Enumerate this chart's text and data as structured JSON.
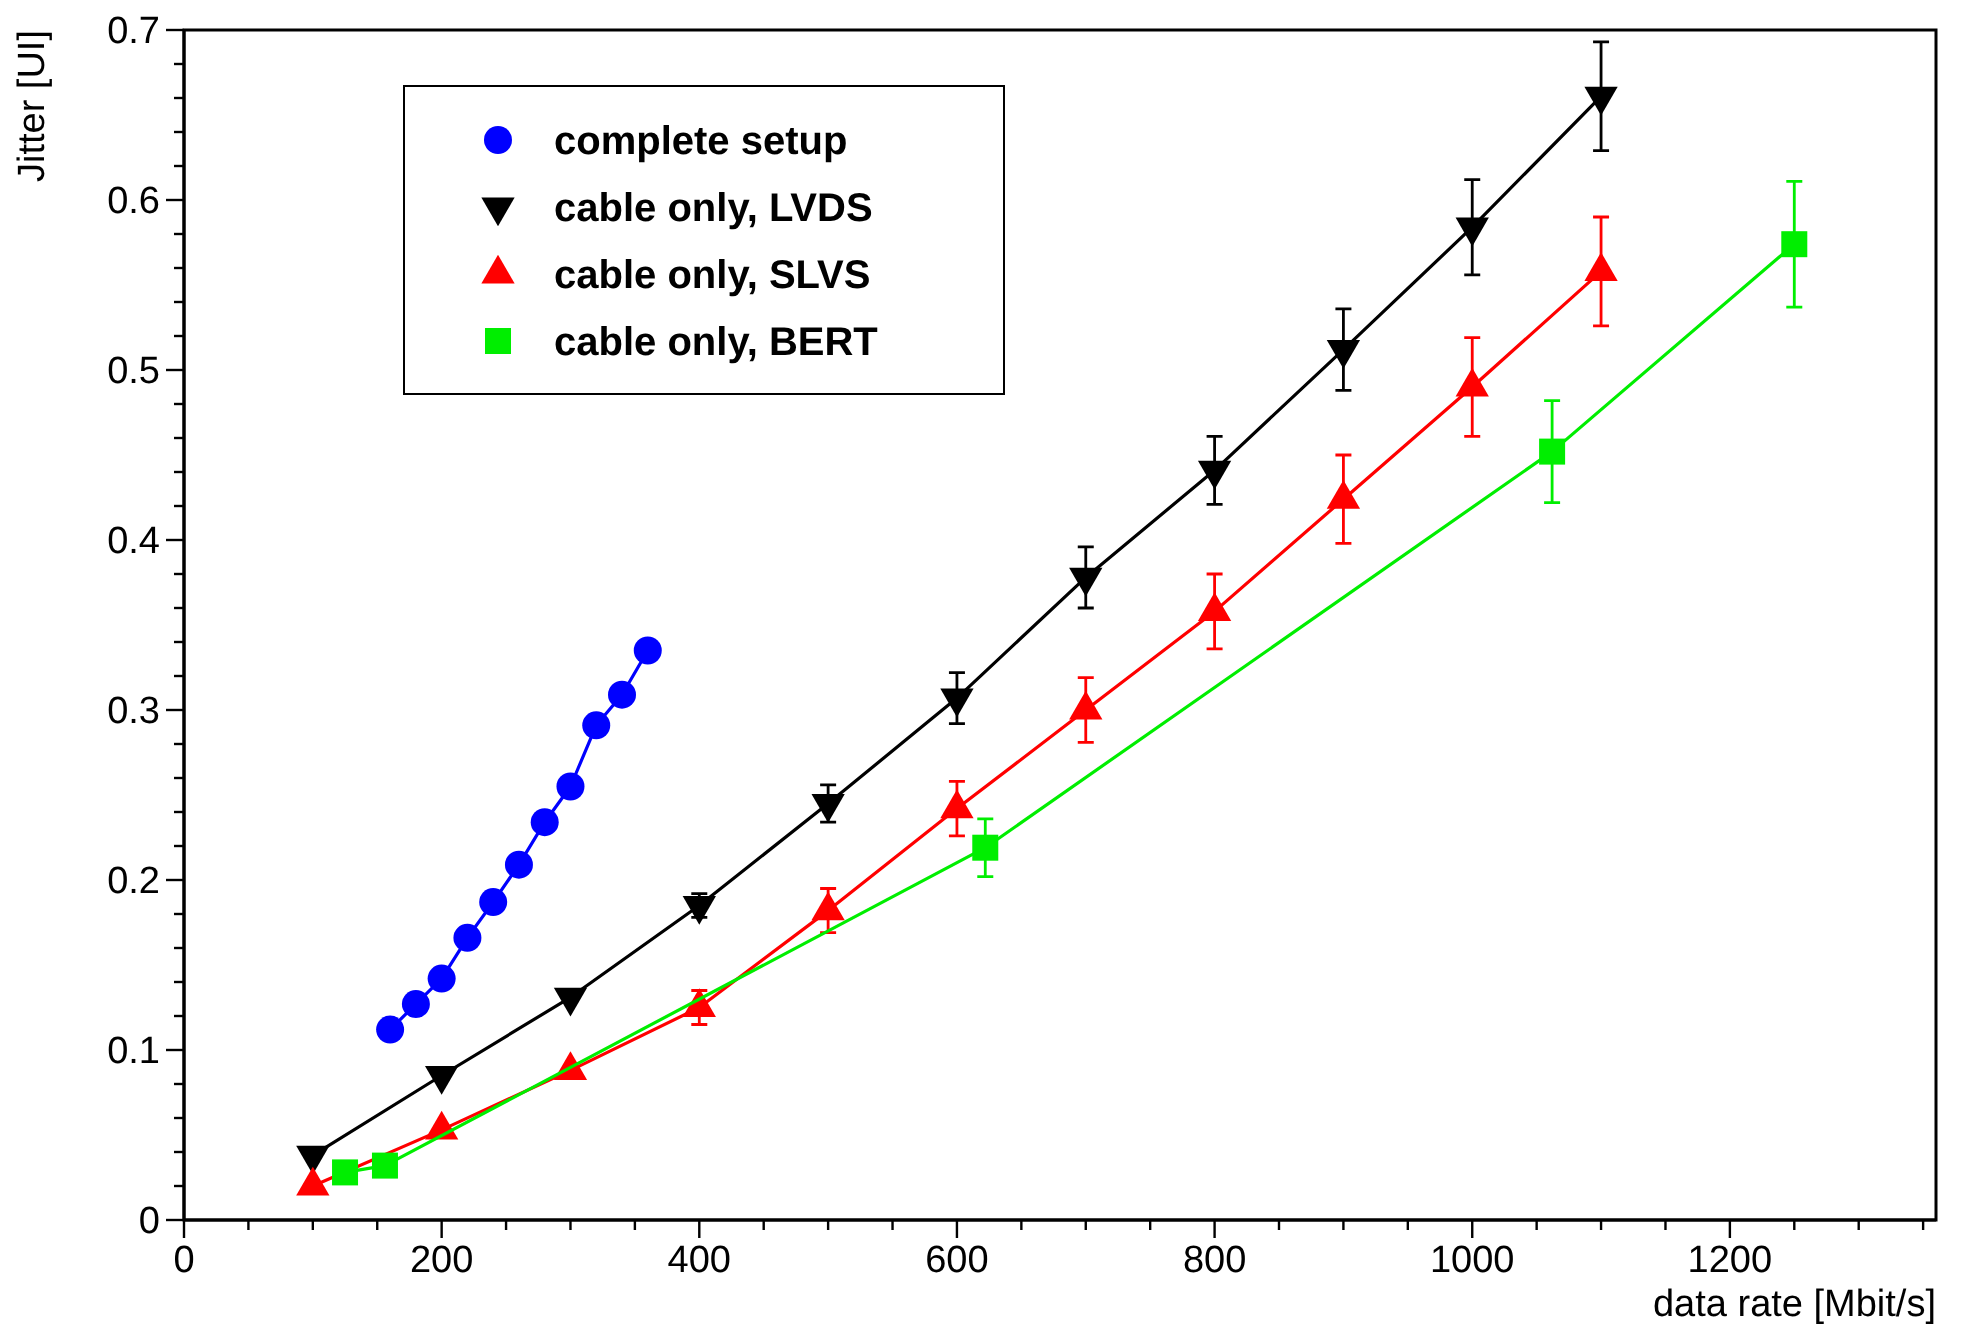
{
  "chart_data": {
    "type": "line",
    "xlabel": "data rate [Mbit/s]",
    "ylabel": "Jitter [UI]",
    "xlim": [
      0,
      1360
    ],
    "ylim": [
      0,
      0.7
    ],
    "xticks": [
      0,
      {
        "value": 50,
        "label": null
      },
      {
        "value": 100,
        "label": null
      },
      {
        "value": 150,
        "label": null
      },
      200,
      {
        "value": 250,
        "label": null
      },
      {
        "value": 300,
        "label": null
      },
      {
        "value": 350,
        "label": null
      },
      400,
      {
        "value": 450,
        "label": null
      },
      {
        "value": 500,
        "label": null
      },
      {
        "value": 550,
        "label": null
      },
      600,
      {
        "value": 650,
        "label": null
      },
      {
        "value": 700,
        "label": null
      },
      {
        "value": 750,
        "label": null
      },
      800,
      {
        "value": 850,
        "label": null
      },
      {
        "value": 900,
        "label": null
      },
      {
        "value": 950,
        "label": null
      },
      1000,
      {
        "value": 1050,
        "label": null
      },
      {
        "value": 1100,
        "label": null
      },
      {
        "value": 1150,
        "label": null
      },
      1200,
      {
        "value": 1250,
        "label": null
      },
      {
        "value": 1300,
        "label": null
      },
      {
        "value": 1350,
        "label": null
      }
    ],
    "yticks": [
      0,
      {
        "value": 0.02,
        "label": null
      },
      {
        "value": 0.04,
        "label": null
      },
      {
        "value": 0.06,
        "label": null
      },
      {
        "value": 0.08,
        "label": null
      },
      0.1,
      {
        "value": 0.12,
        "label": null
      },
      {
        "value": 0.14,
        "label": null
      },
      {
        "value": 0.16,
        "label": null
      },
      {
        "value": 0.18,
        "label": null
      },
      0.2,
      {
        "value": 0.22,
        "label": null
      },
      {
        "value": 0.24,
        "label": null
      },
      {
        "value": 0.26,
        "label": null
      },
      {
        "value": 0.28,
        "label": null
      },
      0.3,
      {
        "value": 0.32,
        "label": null
      },
      {
        "value": 0.34,
        "label": null
      },
      {
        "value": 0.36,
        "label": null
      },
      {
        "value": 0.38,
        "label": null
      },
      0.4,
      {
        "value": 0.42,
        "label": null
      },
      {
        "value": 0.44,
        "label": null
      },
      {
        "value": 0.46,
        "label": null
      },
      {
        "value": 0.48,
        "label": null
      },
      0.5,
      {
        "value": 0.52,
        "label": null
      },
      {
        "value": 0.54,
        "label": null
      },
      {
        "value": 0.56,
        "label": null
      },
      {
        "value": 0.58,
        "label": null
      },
      0.6,
      {
        "value": 0.62,
        "label": null
      },
      {
        "value": 0.64,
        "label": null
      },
      {
        "value": 0.66,
        "label": null
      },
      {
        "value": 0.68,
        "label": null
      },
      0.7
    ],
    "grid": false,
    "legend": "top left",
    "line_style": "solid",
    "series": [
      {
        "name": "complete setup",
        "color": "#0000ff",
        "marker": "circle",
        "x": [
          160,
          180,
          200,
          220,
          240,
          260,
          280,
          300,
          320,
          340,
          360
        ],
        "values": [
          0.112,
          0.127,
          0.142,
          0.166,
          0.187,
          0.209,
          0.234,
          0.255,
          0.291,
          0.309,
          0.335
        ]
      },
      {
        "name": "cable only, LVDS",
        "color": "#000000",
        "marker": "triangle-down",
        "x": [
          100,
          200,
          300,
          400,
          500,
          600,
          700,
          800,
          900,
          1000,
          1100
        ],
        "values": [
          0.038,
          0.085,
          0.131,
          0.185,
          0.245,
          0.307,
          0.378,
          0.441,
          0.512,
          0.584,
          0.661
        ],
        "errors": [
          null,
          null,
          null,
          0.007,
          0.011,
          0.015,
          0.018,
          0.02,
          0.024,
          0.028,
          0.032
        ]
      },
      {
        "name": "cable only, SLVS",
        "color": "#ff0000",
        "marker": "triangle",
        "x": [
          100,
          200,
          300,
          400,
          500,
          600,
          700,
          800,
          900,
          1000,
          1100
        ],
        "values": [
          0.02,
          0.053,
          0.088,
          0.125,
          0.182,
          0.242,
          0.3,
          0.358,
          0.424,
          0.49,
          0.558
        ],
        "errors": [
          null,
          null,
          null,
          0.01,
          0.013,
          0.016,
          0.019,
          0.022,
          0.026,
          0.029,
          0.032
        ]
      },
      {
        "name": "cable only, BERT",
        "color": "#00ee00",
        "marker": "square",
        "x": [
          125,
          156,
          622,
          1062,
          1250
        ],
        "values": [
          0.028,
          0.032,
          0.219,
          0.452,
          0.574
        ],
        "errors": [
          null,
          null,
          0.017,
          0.03,
          0.037
        ]
      }
    ]
  }
}
